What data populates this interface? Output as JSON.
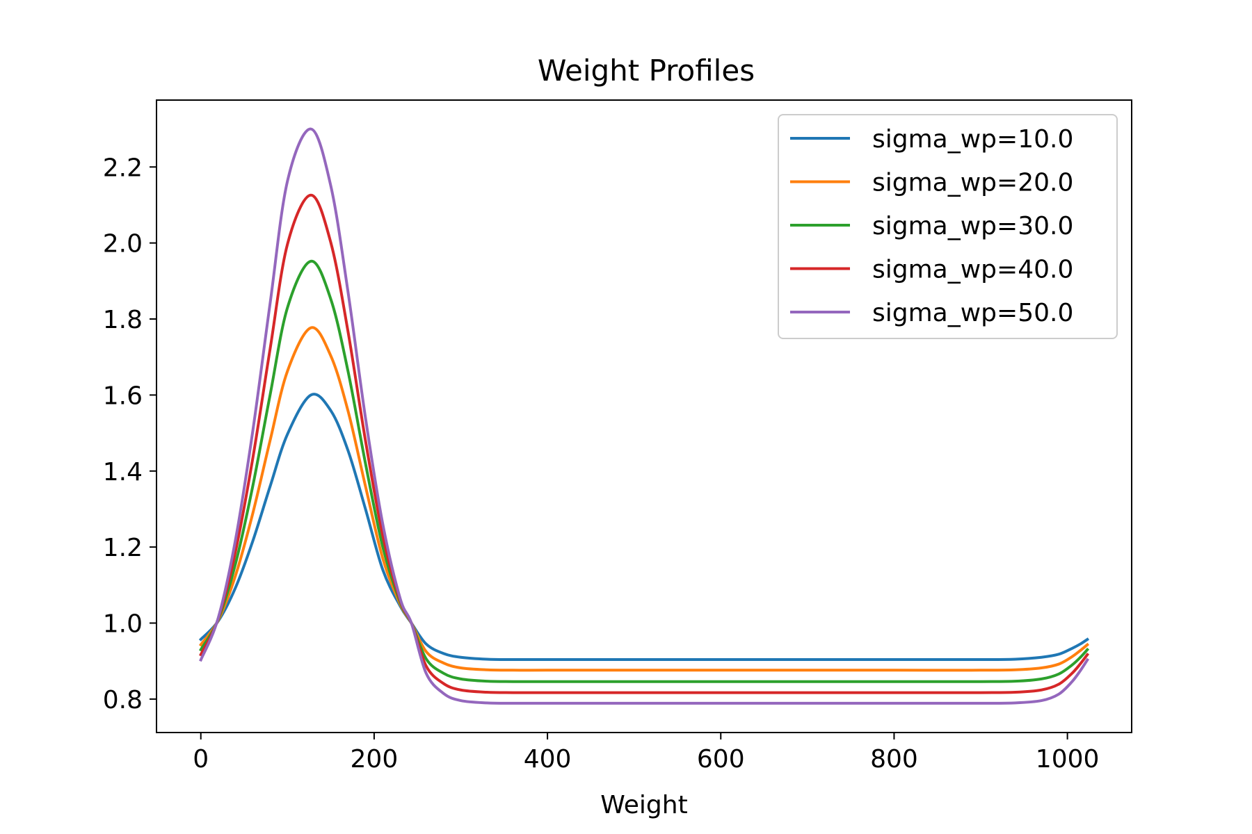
{
  "chart_data": {
    "type": "line",
    "title": "Weight Profiles",
    "xlabel": "Weight",
    "ylabel": "",
    "xlim": [
      -51.15,
      1074.15
    ],
    "ylim": [
      0.712,
      2.376
    ],
    "xticks": [
      0,
      200,
      400,
      600,
      800,
      1000
    ],
    "yticks": [
      0.8,
      1.0,
      1.2,
      1.4,
      1.6,
      1.8,
      2.0,
      2.2
    ],
    "grid": false,
    "legend_position": "top-right",
    "x": [
      0,
      20,
      40,
      60,
      80,
      100,
      127,
      150,
      170,
      190,
      210,
      230,
      243,
      260,
      280,
      300,
      330,
      360,
      400,
      500,
      600,
      700,
      800,
      900,
      940,
      970,
      990,
      1005,
      1015,
      1023
    ],
    "series": [
      {
        "name": "sigma_wp=10.0",
        "color": "#1f77b4",
        "values": [
          0.957,
          1.005,
          1.093,
          1.216,
          1.36,
          1.497,
          1.6,
          1.559,
          1.453,
          1.3,
          1.14,
          1.045,
          1.0,
          0.945,
          0.92,
          0.91,
          0.905,
          0.904,
          0.904,
          0.904,
          0.904,
          0.904,
          0.904,
          0.904,
          0.905,
          0.91,
          0.918,
          0.933,
          0.945,
          0.957
        ]
      },
      {
        "name": "sigma_wp=20.0",
        "color": "#ff7f0e",
        "values": [
          0.943,
          1.007,
          1.125,
          1.289,
          1.481,
          1.663,
          1.777,
          1.703,
          1.557,
          1.36,
          1.17,
          1.05,
          1.0,
          0.925,
          0.895,
          0.882,
          0.877,
          0.876,
          0.876,
          0.876,
          0.876,
          0.876,
          0.876,
          0.876,
          0.877,
          0.882,
          0.892,
          0.911,
          0.928,
          0.943
        ]
      },
      {
        "name": "sigma_wp=30.0",
        "color": "#2ca02c",
        "values": [
          0.93,
          1.009,
          1.156,
          1.361,
          1.601,
          1.83,
          1.952,
          1.852,
          1.661,
          1.42,
          1.2,
          1.055,
          1.0,
          0.906,
          0.868,
          0.853,
          0.847,
          0.846,
          0.846,
          0.846,
          0.846,
          0.846,
          0.846,
          0.846,
          0.847,
          0.853,
          0.866,
          0.889,
          0.91,
          0.93
        ]
      },
      {
        "name": "sigma_wp=40.0",
        "color": "#d62728",
        "values": [
          0.917,
          1.011,
          1.188,
          1.434,
          1.722,
          1.997,
          2.126,
          2.001,
          1.765,
          1.48,
          1.23,
          1.06,
          1.0,
          0.887,
          0.841,
          0.824,
          0.818,
          0.817,
          0.817,
          0.817,
          0.817,
          0.817,
          0.817,
          0.817,
          0.818,
          0.824,
          0.839,
          0.867,
          0.893,
          0.917
        ]
      },
      {
        "name": "sigma_wp=50.0",
        "color": "#9467bd",
        "values": [
          0.903,
          1.013,
          1.219,
          1.506,
          1.842,
          2.163,
          2.3,
          2.15,
          1.869,
          1.54,
          1.26,
          1.065,
          1.0,
          0.868,
          0.815,
          0.796,
          0.79,
          0.789,
          0.789,
          0.789,
          0.789,
          0.789,
          0.789,
          0.789,
          0.79,
          0.796,
          0.813,
          0.845,
          0.875,
          0.903
        ]
      }
    ]
  }
}
